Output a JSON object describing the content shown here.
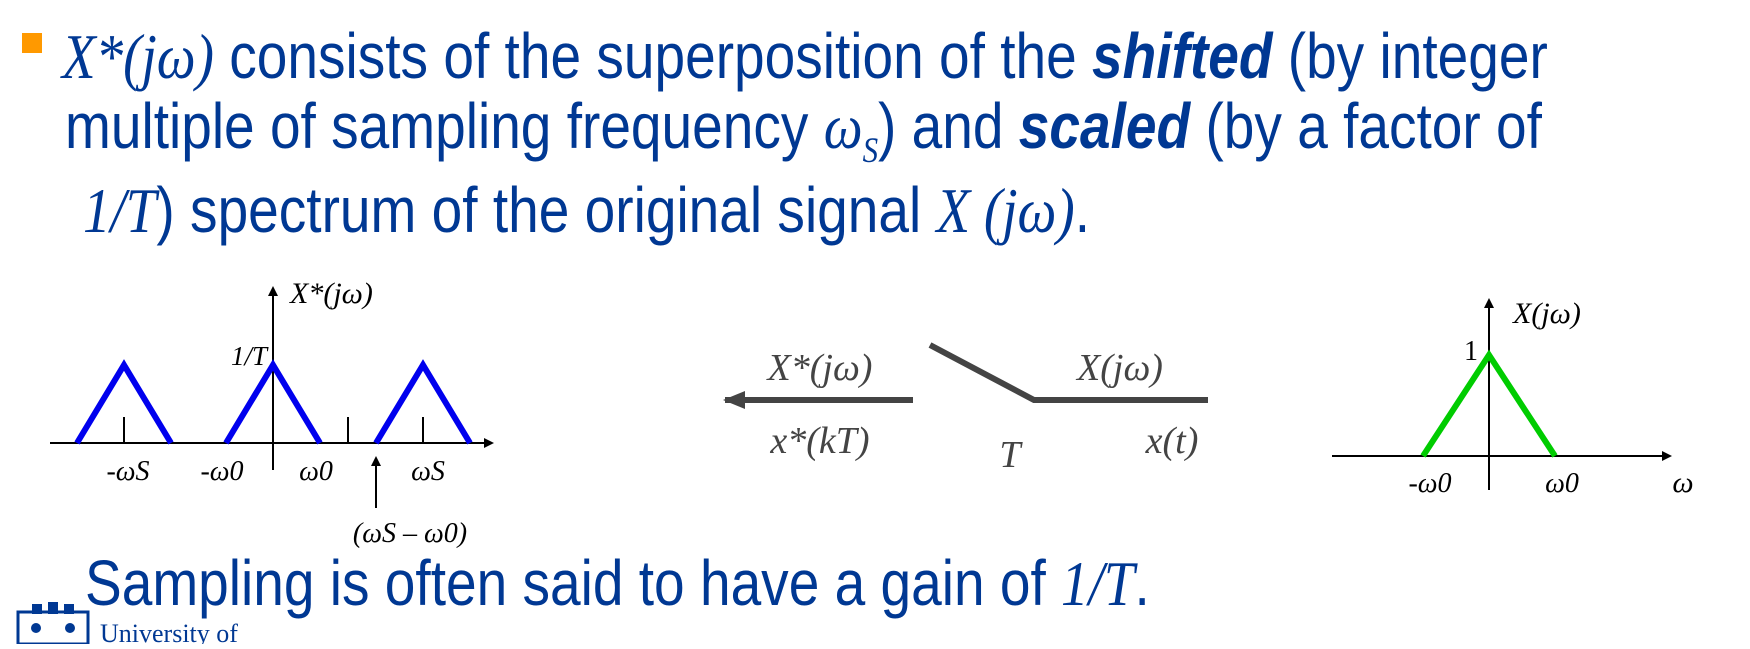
{
  "bullet_color": "#ff9900",
  "text_color": "#003893",
  "paragraph": {
    "l1_math": "X*(jω)",
    "l1_a": " consists of the superposition of the ",
    "l1_bold": "shifted",
    "l1_b": " (by integer",
    "l2_a": "multiple of sampling frequency ",
    "l2_math": "ω",
    "l2_sub": "S",
    "l2_b": ") and ",
    "l2_bold": "scaled",
    "l2_c": " (by a factor of",
    "l3_math": "1/T",
    "l3_a": ") spectrum of the original signal ",
    "l3_math2": "X (jω)",
    "l3_b": "."
  },
  "footer_line": {
    "text": "Sampling is often said to have a gain of ",
    "math": "1/T",
    "end": "."
  },
  "logo": {
    "text": "University of"
  },
  "chart_data": [
    {
      "type": "line",
      "title": "X*(jω)",
      "y_tick_label": "1/T",
      "color": "#0000ee",
      "x_tick_labels": [
        "-ωS",
        "-ω0",
        "ω0",
        "ωS"
      ],
      "annotation": "(ωS – ω0)",
      "series": [
        {
          "x": [
            "-ωS-ω0",
            "-ωS",
            "-ωS+ω0"
          ],
          "y": [
            0,
            "1/T",
            0
          ]
        },
        {
          "x": [
            "-ω0",
            "0",
            "ω0"
          ],
          "y": [
            0,
            "1/T",
            0
          ]
        },
        {
          "x": [
            "ωS-ω0",
            "ωS",
            "ωS+ω0"
          ],
          "y": [
            0,
            "1/T",
            0
          ]
        }
      ]
    },
    {
      "type": "line",
      "title": "X(jω)",
      "y_tick_label": "1",
      "color": "#00cc00",
      "x_tick_labels": [
        "-ω0",
        "ω0"
      ],
      "xlabel": "ω",
      "series": [
        {
          "x": [
            "-ω0",
            "0",
            "ω0"
          ],
          "y": [
            0,
            1,
            0
          ]
        }
      ]
    }
  ],
  "sampler": {
    "out_top": "X*(jω)",
    "out_bottom": "x*(kT)",
    "period": "T",
    "in_top": "X(jω)",
    "in_bottom": "x(t)"
  }
}
